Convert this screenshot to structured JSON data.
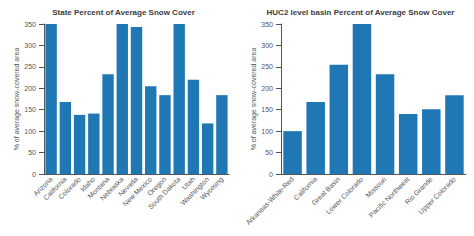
{
  "chart_data": [
    {
      "type": "bar",
      "title": "State Percent of Average Snow Cover",
      "categories": [
        "Arizona",
        "California",
        "Colorado",
        "Idaho",
        "Montana",
        "Nebraska",
        "Nevada",
        "New Mexico",
        "Oregon",
        "South Dakota",
        "Utah",
        "Washington",
        "Wyoming"
      ],
      "values": [
        350,
        168,
        138,
        141,
        233,
        350,
        343,
        205,
        184,
        350,
        220,
        118,
        184
      ],
      "color": "#1f77b4",
      "ylabel": "% of average snow-covered area",
      "ylim": [
        0,
        350
      ],
      "yticks": [
        0,
        50,
        100,
        150,
        200,
        250,
        300,
        350
      ],
      "grid": false
    },
    {
      "type": "bar",
      "title": "HUC2 level basin Percent of Average Snow Cover",
      "categories": [
        "Arkansas-White-Red",
        "California",
        "Great Basin",
        "Lower Colorado",
        "Missouri",
        "Pacific Northwest",
        "Rio Grande",
        "Upper Colorado"
      ],
      "values": [
        100,
        168,
        255,
        350,
        233,
        140,
        151,
        184
      ],
      "color": "#1f77b4",
      "ylabel": "% of average snow-covered area",
      "ylim": [
        0,
        350
      ],
      "yticks": [
        0,
        50,
        100,
        150,
        200,
        250,
        300,
        350
      ],
      "grid": false
    }
  ]
}
